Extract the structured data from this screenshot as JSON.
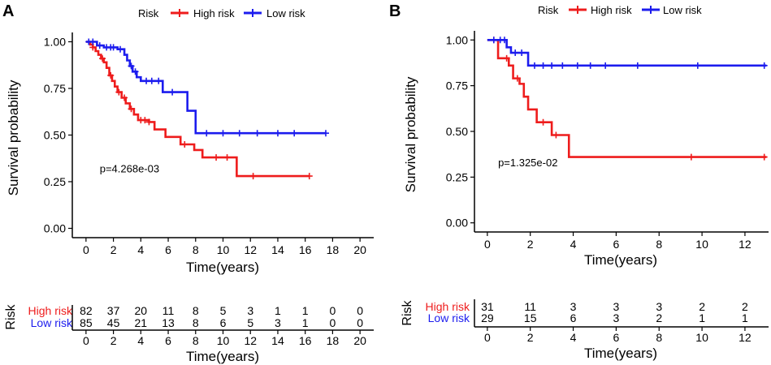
{
  "chart_data": [
    {
      "type": "line",
      "subtype": "kaplan-meier",
      "panel_label": "A",
      "legend_title": "Risk",
      "legend_position": "top",
      "xlabel": "Time(years)",
      "ylabel": "Survival probability",
      "xlim": [
        -1,
        21
      ],
      "ylim": [
        -0.05,
        1.05
      ],
      "xticks": [
        0,
        2,
        4,
        6,
        8,
        10,
        12,
        14,
        16,
        18,
        20
      ],
      "yticks": [
        0.0,
        0.25,
        0.5,
        0.75,
        1.0
      ],
      "ytick_labels": [
        "0.00",
        "0.25",
        "0.50",
        "0.75",
        "1.00"
      ],
      "pvalue_text": "p=4.268e-03",
      "pvalue_pos": [
        1,
        0.3
      ],
      "series": [
        {
          "name": "High risk",
          "color": "#ee1c1c",
          "steps": [
            [
              0,
              1.0
            ],
            [
              0.3,
              0.985
            ],
            [
              0.5,
              0.97
            ],
            [
              0.7,
              0.95
            ],
            [
              0.9,
              0.93
            ],
            [
              1.1,
              0.91
            ],
            [
              1.3,
              0.89
            ],
            [
              1.5,
              0.86
            ],
            [
              1.7,
              0.82
            ],
            [
              1.9,
              0.79
            ],
            [
              2.1,
              0.76
            ],
            [
              2.3,
              0.73
            ],
            [
              2.6,
              0.7
            ],
            [
              2.9,
              0.67
            ],
            [
              3.2,
              0.64
            ],
            [
              3.5,
              0.61
            ],
            [
              3.8,
              0.58
            ],
            [
              4.6,
              0.57
            ],
            [
              5.0,
              0.53
            ],
            [
              5.8,
              0.49
            ],
            [
              6.9,
              0.45
            ],
            [
              7.9,
              0.42
            ],
            [
              8.5,
              0.38
            ],
            [
              11.0,
              0.28
            ],
            [
              16.3,
              0.28
            ]
          ],
          "censor": [
            [
              0.5,
              0.97
            ],
            [
              1.2,
              0.91
            ],
            [
              1.8,
              0.82
            ],
            [
              2.4,
              0.73
            ],
            [
              2.8,
              0.7
            ],
            [
              3.3,
              0.64
            ],
            [
              4.0,
              0.58
            ],
            [
              4.3,
              0.58
            ],
            [
              4.6,
              0.57
            ],
            [
              7.2,
              0.45
            ],
            [
              9.5,
              0.38
            ],
            [
              10.3,
              0.38
            ],
            [
              12.2,
              0.28
            ],
            [
              16.3,
              0.28
            ]
          ]
        },
        {
          "name": "Low risk",
          "color": "#1c1cee",
          "steps": [
            [
              0,
              1.0
            ],
            [
              0.8,
              0.98
            ],
            [
              1.3,
              0.97
            ],
            [
              2.3,
              0.96
            ],
            [
              2.8,
              0.93
            ],
            [
              3.0,
              0.9
            ],
            [
              3.2,
              0.87
            ],
            [
              3.4,
              0.84
            ],
            [
              3.7,
              0.81
            ],
            [
              4.0,
              0.79
            ],
            [
              5.6,
              0.73
            ],
            [
              7.4,
              0.63
            ],
            [
              8.0,
              0.51
            ],
            [
              17.5,
              0.51
            ]
          ],
          "censor": [
            [
              0.2,
              1.0
            ],
            [
              0.5,
              1.0
            ],
            [
              1.0,
              0.98
            ],
            [
              1.5,
              0.97
            ],
            [
              1.8,
              0.97
            ],
            [
              2.0,
              0.97
            ],
            [
              2.5,
              0.96
            ],
            [
              3.3,
              0.87
            ],
            [
              3.6,
              0.84
            ],
            [
              4.4,
              0.79
            ],
            [
              4.8,
              0.79
            ],
            [
              5.3,
              0.79
            ],
            [
              6.3,
              0.73
            ],
            [
              8.8,
              0.51
            ],
            [
              10.0,
              0.51
            ],
            [
              11.2,
              0.51
            ],
            [
              12.5,
              0.51
            ],
            [
              14.0,
              0.51
            ],
            [
              15.2,
              0.51
            ],
            [
              17.5,
              0.51
            ]
          ]
        }
      ],
      "risk_table": {
        "title": "Risk",
        "xlabel": "Time(years)",
        "times": [
          0,
          2,
          4,
          6,
          8,
          10,
          12,
          14,
          16,
          18,
          20
        ],
        "rows": [
          {
            "label": "High risk",
            "color": "#ee1c1c",
            "counts": [
              82,
              37,
              20,
              11,
              8,
              5,
              3,
              1,
              1,
              0,
              0
            ]
          },
          {
            "label": "Low risk",
            "color": "#1c1cee",
            "counts": [
              85,
              45,
              21,
              13,
              8,
              6,
              5,
              3,
              1,
              0,
              0
            ]
          }
        ]
      }
    },
    {
      "type": "line",
      "subtype": "kaplan-meier",
      "panel_label": "B",
      "legend_title": "Risk",
      "legend_position": "top",
      "xlabel": "Time(years)",
      "ylabel": "Survival probability",
      "xlim": [
        -0.6,
        13.1
      ],
      "ylim": [
        -0.05,
        1.05
      ],
      "xticks": [
        0,
        2,
        4,
        6,
        8,
        10,
        12
      ],
      "yticks": [
        0.0,
        0.25,
        0.5,
        0.75,
        1.0
      ],
      "ytick_labels": [
        "0.00",
        "0.25",
        "0.50",
        "0.75",
        "1.00"
      ],
      "pvalue_text": "p=1.325e-02",
      "pvalue_pos": [
        0.5,
        0.31
      ],
      "series": [
        {
          "name": "High risk",
          "color": "#ee1c1c",
          "steps": [
            [
              0,
              1.0
            ],
            [
              0.5,
              0.9
            ],
            [
              1.0,
              0.86
            ],
            [
              1.2,
              0.79
            ],
            [
              1.5,
              0.76
            ],
            [
              1.7,
              0.69
            ],
            [
              1.9,
              0.62
            ],
            [
              2.3,
              0.55
            ],
            [
              3.0,
              0.48
            ],
            [
              3.8,
              0.36
            ],
            [
              13.0,
              0.36
            ]
          ],
          "censor": [
            [
              0.3,
              1.0
            ],
            [
              0.9,
              0.9
            ],
            [
              1.4,
              0.79
            ],
            [
              2.6,
              0.55
            ],
            [
              3.2,
              0.48
            ],
            [
              9.5,
              0.36
            ],
            [
              12.9,
              0.36
            ]
          ]
        },
        {
          "name": "Low risk",
          "color": "#1c1cee",
          "steps": [
            [
              0,
              1.0
            ],
            [
              0.9,
              0.96
            ],
            [
              1.1,
              0.93
            ],
            [
              1.9,
              0.86
            ],
            [
              13.0,
              0.86
            ]
          ],
          "censor": [
            [
              0.3,
              1.0
            ],
            [
              0.6,
              1.0
            ],
            [
              0.8,
              1.0
            ],
            [
              1.3,
              0.93
            ],
            [
              1.6,
              0.93
            ],
            [
              2.2,
              0.86
            ],
            [
              2.6,
              0.86
            ],
            [
              3.0,
              0.86
            ],
            [
              3.5,
              0.86
            ],
            [
              4.2,
              0.86
            ],
            [
              4.8,
              0.86
            ],
            [
              5.5,
              0.86
            ],
            [
              7.0,
              0.86
            ],
            [
              9.8,
              0.86
            ],
            [
              12.9,
              0.86
            ]
          ]
        }
      ],
      "risk_table": {
        "title": "Risk",
        "xlabel": "Time(years)",
        "times": [
          0,
          2,
          4,
          6,
          8,
          10,
          12
        ],
        "rows": [
          {
            "label": "High risk",
            "color": "#ee1c1c",
            "counts": [
              31,
              11,
              3,
              3,
              3,
              2,
              2
            ]
          },
          {
            "label": "Low risk",
            "color": "#1c1cee",
            "counts": [
              29,
              15,
              6,
              3,
              2,
              1,
              1
            ]
          }
        ]
      }
    }
  ]
}
